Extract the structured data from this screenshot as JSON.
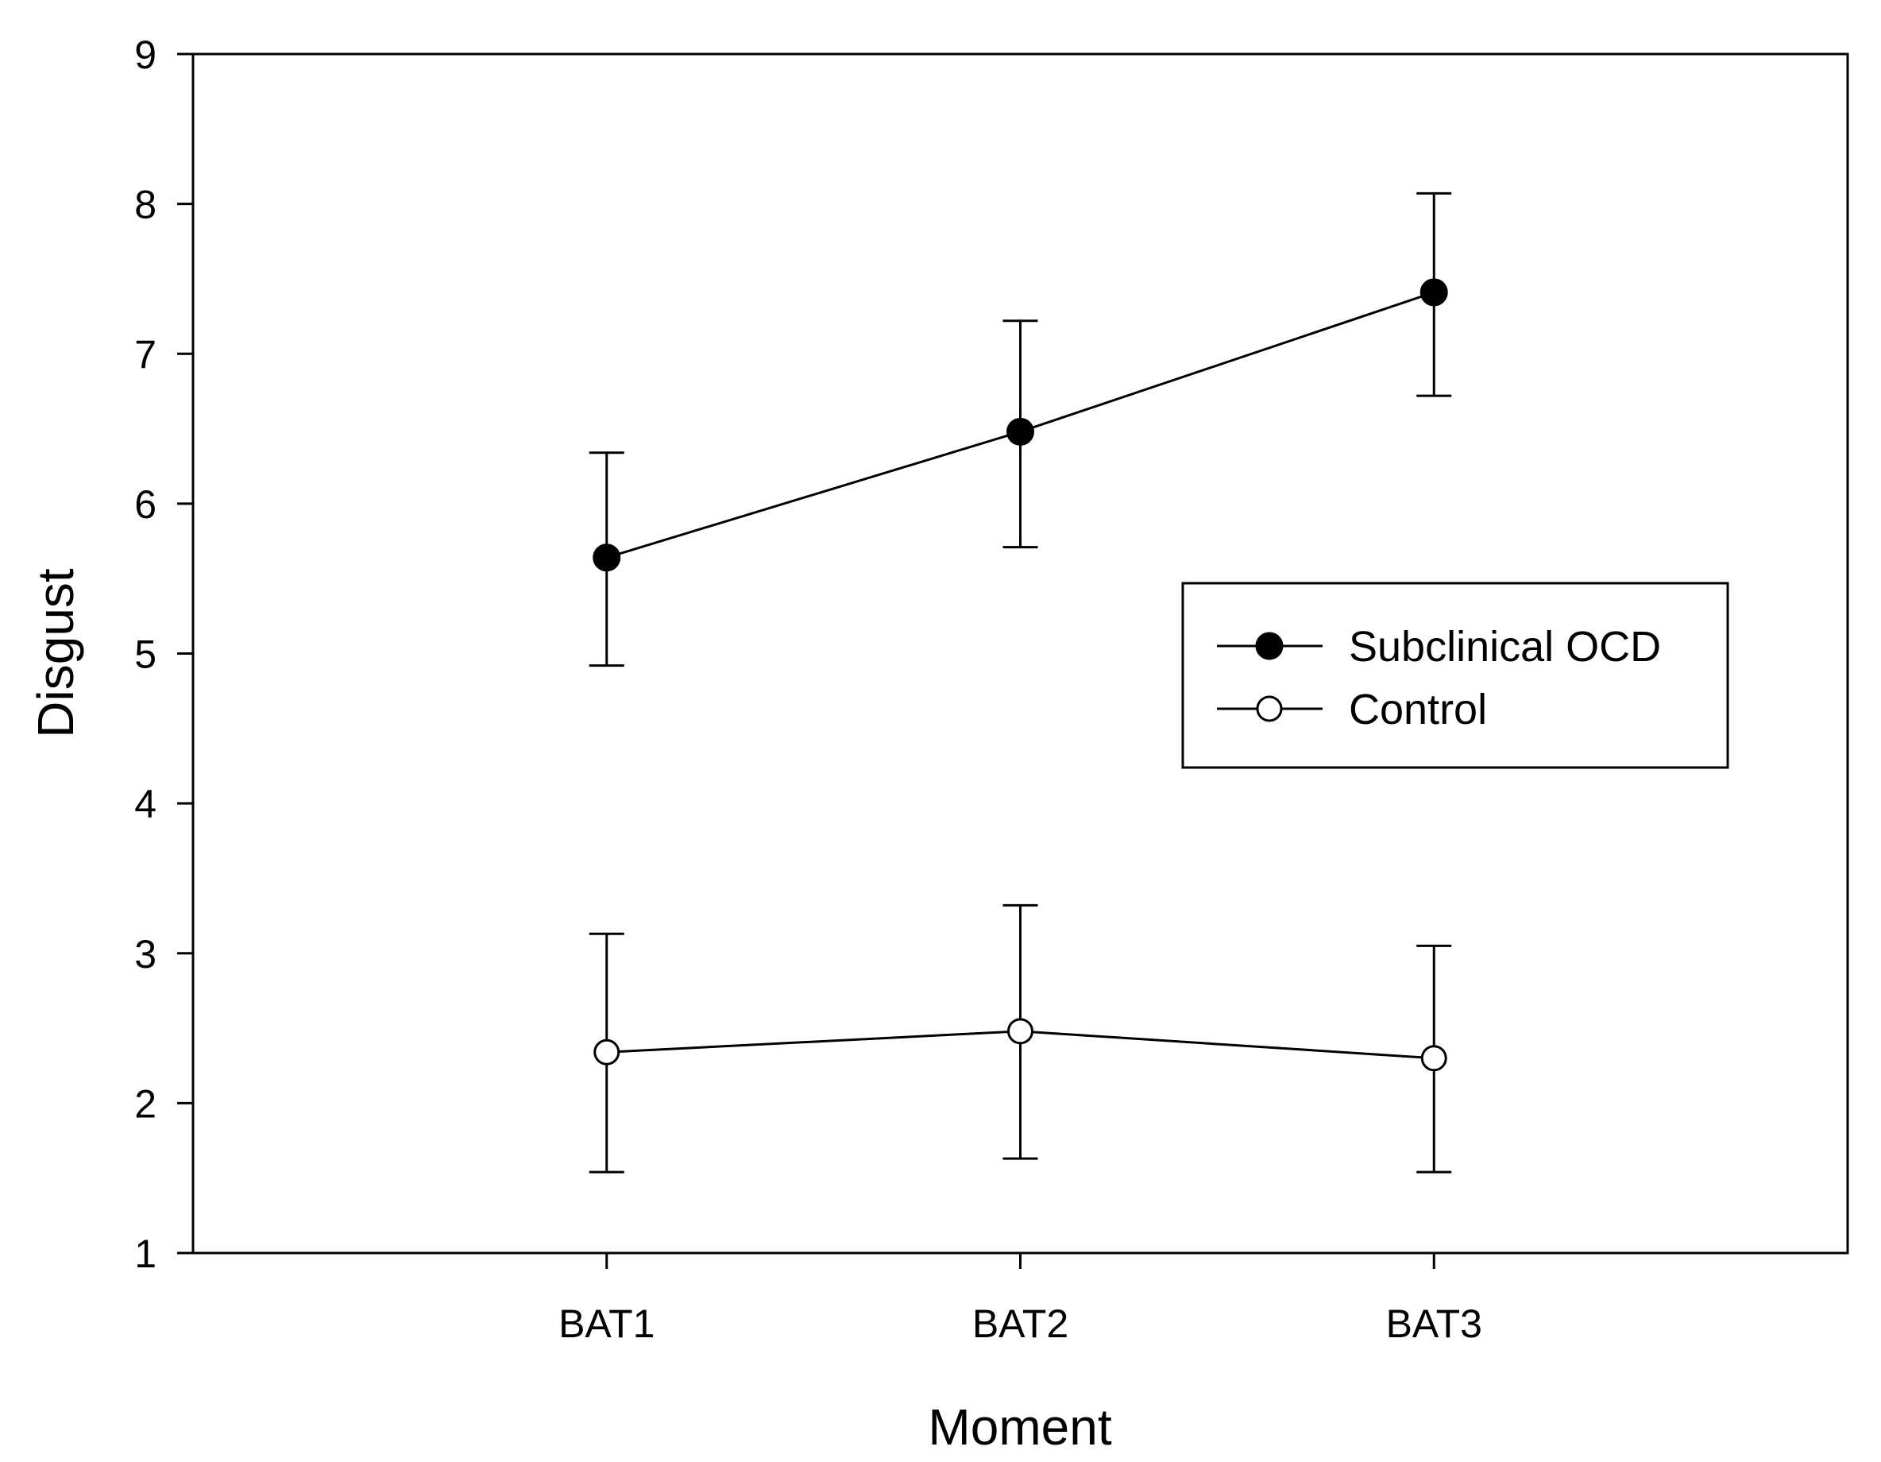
{
  "chart_data": {
    "type": "line",
    "title": "",
    "xlabel": "Moment",
    "ylabel": "Disgust",
    "categories": [
      "BAT1",
      "BAT2",
      "BAT3"
    ],
    "ylim": [
      1,
      9
    ],
    "yticks": [
      1,
      2,
      3,
      4,
      5,
      6,
      7,
      8,
      9
    ],
    "grid": false,
    "legend_position": "center-right",
    "error_bars": true,
    "series": [
      {
        "name": "Subclinical OCD",
        "marker": "filled-circle",
        "values": [
          5.64,
          6.48,
          7.41
        ],
        "error_low": [
          4.92,
          5.71,
          6.72
        ],
        "error_high": [
          6.34,
          7.22,
          8.07
        ]
      },
      {
        "name": "Control",
        "marker": "open-circle",
        "values": [
          2.34,
          2.48,
          2.3
        ],
        "error_low": [
          1.54,
          1.63,
          1.54
        ],
        "error_high": [
          3.13,
          3.32,
          3.05
        ]
      }
    ]
  },
  "colors": {
    "line": "#000000",
    "open_marker_fill": "#ffffff",
    "background": "#ffffff"
  }
}
